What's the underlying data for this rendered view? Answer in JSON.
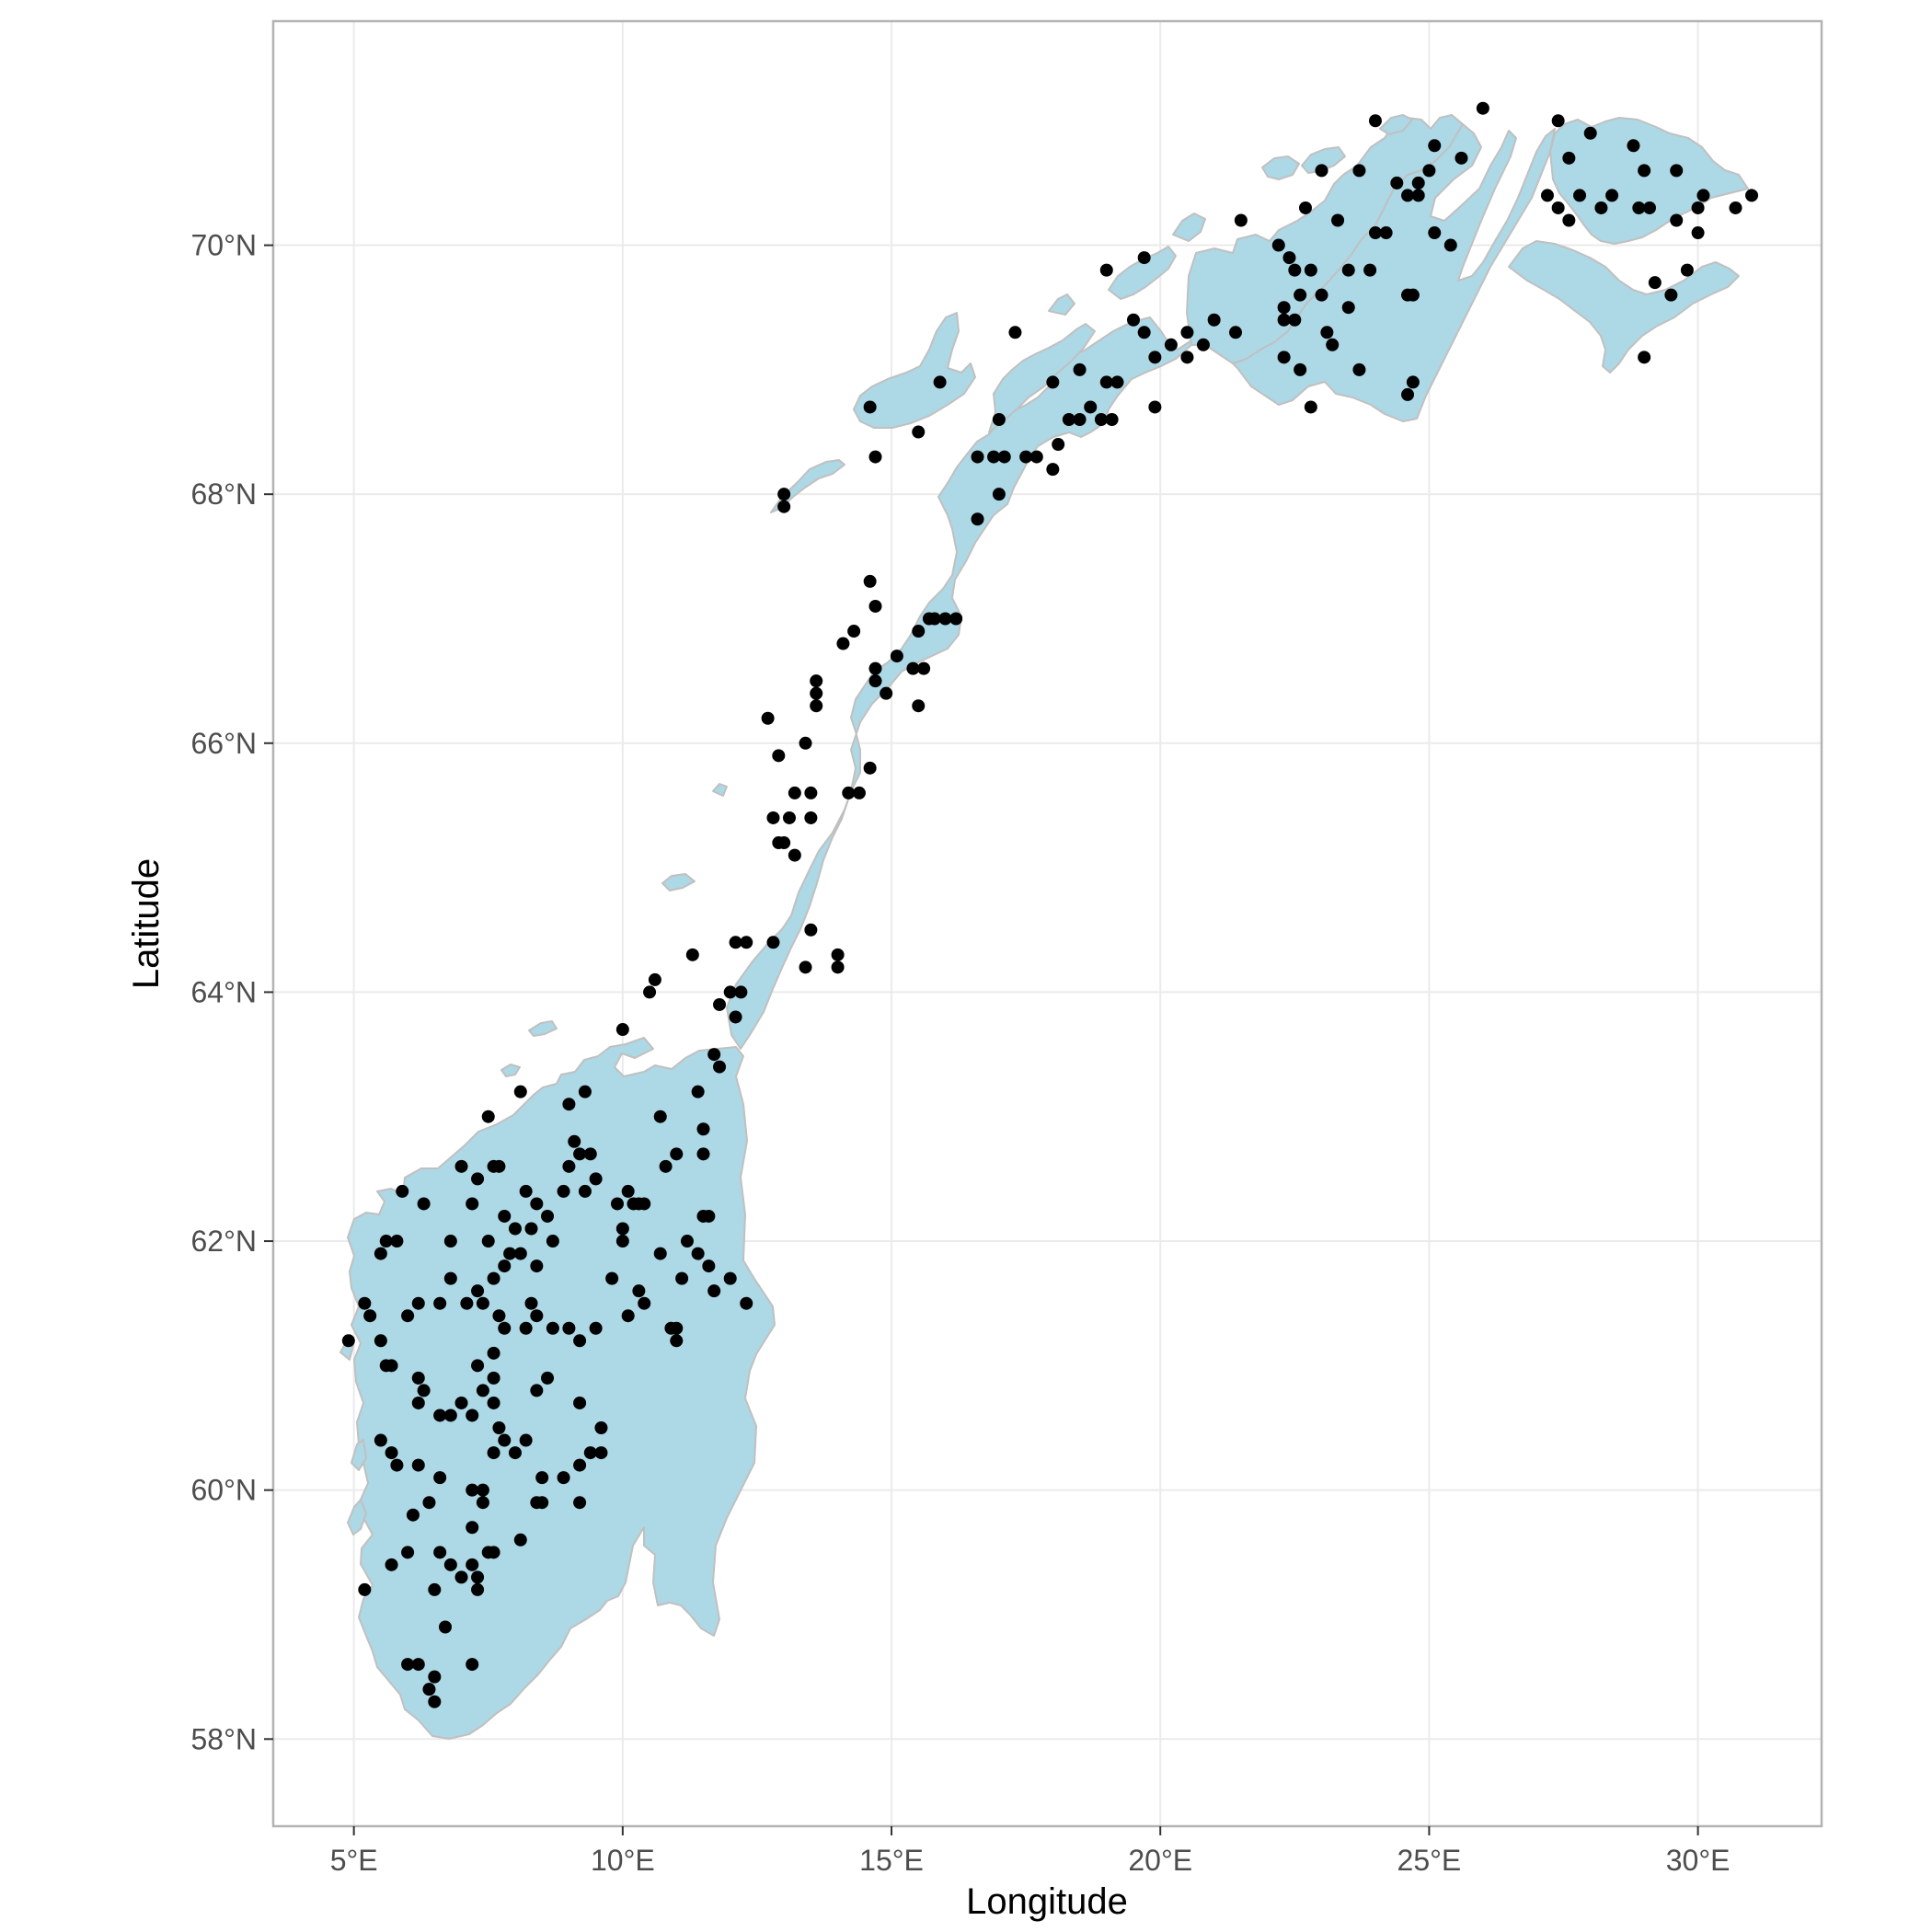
{
  "chart_data": {
    "type": "scatter",
    "map": "Norway",
    "xlabel": "Longitude",
    "ylabel": "Latitude",
    "xlim": [
      3.5,
      32.3
    ],
    "ylim": [
      57.3,
      71.8
    ],
    "x_ticks": [
      5,
      10,
      15,
      20,
      25,
      30
    ],
    "y_ticks": [
      58,
      60,
      62,
      64,
      66,
      68,
      70
    ],
    "x_tick_labels": [
      "5°E",
      "10°E",
      "15°E",
      "20°E",
      "25°E",
      "30°E"
    ],
    "y_tick_labels": [
      "58°N",
      "60°N",
      "62°N",
      "64°N",
      "66°N",
      "68°N",
      "70°N"
    ],
    "grid": true,
    "colors": {
      "land_fill": "#add8e6",
      "land_border": "#c0c0c0",
      "points": "#000000",
      "panel_border": "#b3b3b3",
      "grid": "#ebebeb"
    },
    "points": [
      [
        6.0,
        58.6
      ],
      [
        6.2,
        58.6
      ],
      [
        6.4,
        58.4
      ],
      [
        6.5,
        58.5
      ],
      [
        6.5,
        58.3
      ],
      [
        6.7,
        58.9
      ],
      [
        7.2,
        58.6
      ],
      [
        5.2,
        59.2
      ],
      [
        5.7,
        59.4
      ],
      [
        6.0,
        59.5
      ],
      [
        6.1,
        59.8
      ],
      [
        6.4,
        59.9
      ],
      [
        6.5,
        59.2
      ],
      [
        6.6,
        59.5
      ],
      [
        6.8,
        59.4
      ],
      [
        7.0,
        59.3
      ],
      [
        7.2,
        59.4
      ],
      [
        7.2,
        59.7
      ],
      [
        7.3,
        59.2
      ],
      [
        7.3,
        59.3
      ],
      [
        7.5,
        59.5
      ],
      [
        7.6,
        59.5
      ],
      [
        7.2,
        60.0
      ],
      [
        7.4,
        59.9
      ],
      [
        7.4,
        60.0
      ],
      [
        5.5,
        60.4
      ],
      [
        5.7,
        60.3
      ],
      [
        5.8,
        60.2
      ],
      [
        6.2,
        60.2
      ],
      [
        6.6,
        60.1
      ],
      [
        7.6,
        60.3
      ],
      [
        7.7,
        60.5
      ],
      [
        7.8,
        60.4
      ],
      [
        8.0,
        60.3
      ],
      [
        8.2,
        60.4
      ],
      [
        8.1,
        59.6
      ],
      [
        8.4,
        59.9
      ],
      [
        8.5,
        60.1
      ],
      [
        8.5,
        59.9
      ],
      [
        8.9,
        60.1
      ],
      [
        9.2,
        59.9
      ],
      [
        9.2,
        60.2
      ],
      [
        9.4,
        60.3
      ],
      [
        9.6,
        60.3
      ],
      [
        9.6,
        60.5
      ],
      [
        5.6,
        61.0
      ],
      [
        5.7,
        61.0
      ],
      [
        6.2,
        60.9
      ],
      [
        6.3,
        60.8
      ],
      [
        6.2,
        60.7
      ],
      [
        6.6,
        60.6
      ],
      [
        6.8,
        60.6
      ],
      [
        7.0,
        60.7
      ],
      [
        7.2,
        60.6
      ],
      [
        7.4,
        60.8
      ],
      [
        7.6,
        60.7
      ],
      [
        7.6,
        60.9
      ],
      [
        7.6,
        61.1
      ],
      [
        7.3,
        61.0
      ],
      [
        8.4,
        60.8
      ],
      [
        8.6,
        60.9
      ],
      [
        9.2,
        60.7
      ],
      [
        4.9,
        61.2
      ],
      [
        5.2,
        61.5
      ],
      [
        5.3,
        61.4
      ],
      [
        5.5,
        61.2
      ],
      [
        5.5,
        61.9
      ],
      [
        5.6,
        62.0
      ],
      [
        5.8,
        62.0
      ],
      [
        5.9,
        62.4
      ],
      [
        6.0,
        61.4
      ],
      [
        6.2,
        61.5
      ],
      [
        6.3,
        62.3
      ],
      [
        6.6,
        61.5
      ],
      [
        6.8,
        61.7
      ],
      [
        7.1,
        61.5
      ],
      [
        7.3,
        61.6
      ],
      [
        7.4,
        61.5
      ],
      [
        7.6,
        61.7
      ],
      [
        7.7,
        61.4
      ],
      [
        7.8,
        61.3
      ],
      [
        7.8,
        61.8
      ],
      [
        7.9,
        61.9
      ],
      [
        8.1,
        61.9
      ],
      [
        8.2,
        61.3
      ],
      [
        8.3,
        61.5
      ],
      [
        8.4,
        61.4
      ],
      [
        8.4,
        61.8
      ],
      [
        8.7,
        61.3
      ],
      [
        9.0,
        61.3
      ],
      [
        9.2,
        61.2
      ],
      [
        9.5,
        61.3
      ],
      [
        6.8,
        62.0
      ],
      [
        7.0,
        62.6
      ],
      [
        7.2,
        62.3
      ],
      [
        7.3,
        62.5
      ],
      [
        7.5,
        62.0
      ],
      [
        7.6,
        62.6
      ],
      [
        7.7,
        62.6
      ],
      [
        7.8,
        62.2
      ],
      [
        8.0,
        62.1
      ],
      [
        8.2,
        62.4
      ],
      [
        8.3,
        62.1
      ],
      [
        8.4,
        62.3
      ],
      [
        8.6,
        62.2
      ],
      [
        8.7,
        62.0
      ],
      [
        8.9,
        62.4
      ],
      [
        9.0,
        62.6
      ],
      [
        9.1,
        62.8
      ],
      [
        9.2,
        62.7
      ],
      [
        9.3,
        62.4
      ],
      [
        9.4,
        62.7
      ],
      [
        9.5,
        62.5
      ],
      [
        9.9,
        62.3
      ],
      [
        10.0,
        62.1
      ],
      [
        10.0,
        62.0
      ],
      [
        10.1,
        62.4
      ],
      [
        10.2,
        62.3
      ],
      [
        10.3,
        62.3
      ],
      [
        10.4,
        62.3
      ],
      [
        9.8,
        61.7
      ],
      [
        10.1,
        61.4
      ],
      [
        10.3,
        61.6
      ],
      [
        10.4,
        61.5
      ],
      [
        10.7,
        61.9
      ],
      [
        10.9,
        61.3
      ],
      [
        11.0,
        61.3
      ],
      [
        11.0,
        61.2
      ],
      [
        11.1,
        61.7
      ],
      [
        11.2,
        62.0
      ],
      [
        11.4,
        61.9
      ],
      [
        11.6,
        61.8
      ],
      [
        11.7,
        61.6
      ],
      [
        12.0,
        61.7
      ],
      [
        12.3,
        61.5
      ],
      [
        11.5,
        62.2
      ],
      [
        11.6,
        62.2
      ],
      [
        7.5,
        63.0
      ],
      [
        8.1,
        63.2
      ],
      [
        9.0,
        63.1
      ],
      [
        9.3,
        63.2
      ],
      [
        10.7,
        63.0
      ],
      [
        10.8,
        62.6
      ],
      [
        11.0,
        62.7
      ],
      [
        11.5,
        62.7
      ],
      [
        11.5,
        62.9
      ],
      [
        11.4,
        63.2
      ],
      [
        11.7,
        63.5
      ],
      [
        11.8,
        63.4
      ],
      [
        10.0,
        63.7
      ],
      [
        10.5,
        64.0
      ],
      [
        10.6,
        64.1
      ],
      [
        11.3,
        64.3
      ],
      [
        12.0,
        64.0
      ],
      [
        12.1,
        64.4
      ],
      [
        12.2,
        64.0
      ],
      [
        12.3,
        64.4
      ],
      [
        12.8,
        64.4
      ],
      [
        11.8,
        63.9
      ],
      [
        12.1,
        63.8
      ],
      [
        13.4,
        64.2
      ],
      [
        13.5,
        64.5
      ],
      [
        14.0,
        64.2
      ],
      [
        14.0,
        64.3
      ],
      [
        12.8,
        65.4
      ],
      [
        12.9,
        65.2
      ],
      [
        13.0,
        65.2
      ],
      [
        13.1,
        65.4
      ],
      [
        13.2,
        65.1
      ],
      [
        13.2,
        65.6
      ],
      [
        13.5,
        65.4
      ],
      [
        13.5,
        65.6
      ],
      [
        14.2,
        65.6
      ],
      [
        14.4,
        65.6
      ],
      [
        14.6,
        65.8
      ],
      [
        12.9,
        65.9
      ],
      [
        13.4,
        66.0
      ],
      [
        12.7,
        66.2
      ],
      [
        13.6,
        66.3
      ],
      [
        13.6,
        66.4
      ],
      [
        13.6,
        66.5
      ],
      [
        14.1,
        66.8
      ],
      [
        14.3,
        66.9
      ],
      [
        14.7,
        66.6
      ],
      [
        14.7,
        66.5
      ],
      [
        15.1,
        66.7
      ],
      [
        15.4,
        66.6
      ],
      [
        15.6,
        66.6
      ],
      [
        14.9,
        66.4
      ],
      [
        15.5,
        66.3
      ],
      [
        14.7,
        67.1
      ],
      [
        15.5,
        66.9
      ],
      [
        15.7,
        67.0
      ],
      [
        15.8,
        67.0
      ],
      [
        16.0,
        67.0
      ],
      [
        16.2,
        67.0
      ],
      [
        14.6,
        67.3
      ],
      [
        16.6,
        67.8
      ],
      [
        13.0,
        67.9
      ],
      [
        13.0,
        68.0
      ],
      [
        14.6,
        68.7
      ],
      [
        14.7,
        68.3
      ],
      [
        15.5,
        68.5
      ],
      [
        15.9,
        68.9
      ],
      [
        16.6,
        68.3
      ],
      [
        16.9,
        68.3
      ],
      [
        17.1,
        68.3
      ],
      [
        17.0,
        68.0
      ],
      [
        17.5,
        68.3
      ],
      [
        17.7,
        68.3
      ],
      [
        17.0,
        68.6
      ],
      [
        18.0,
        68.2
      ],
      [
        18.1,
        68.4
      ],
      [
        18.0,
        68.9
      ],
      [
        18.3,
        68.6
      ],
      [
        18.5,
        68.6
      ],
      [
        18.5,
        69.0
      ],
      [
        17.3,
        69.3
      ],
      [
        18.7,
        68.7
      ],
      [
        18.9,
        68.6
      ],
      [
        19.1,
        68.6
      ],
      [
        19.0,
        68.9
      ],
      [
        19.2,
        68.9
      ],
      [
        19.9,
        68.7
      ],
      [
        19.0,
        69.8
      ],
      [
        19.5,
        69.4
      ],
      [
        19.7,
        69.3
      ],
      [
        19.7,
        69.9
      ],
      [
        19.9,
        69.1
      ],
      [
        20.2,
        69.2
      ],
      [
        20.5,
        69.1
      ],
      [
        20.5,
        69.3
      ],
      [
        20.8,
        69.2
      ],
      [
        21.0,
        69.4
      ],
      [
        21.4,
        69.3
      ],
      [
        21.5,
        70.2
      ],
      [
        22.3,
        69.4
      ],
      [
        22.3,
        69.5
      ],
      [
        22.5,
        69.4
      ],
      [
        22.5,
        69.8
      ],
      [
        22.6,
        69.6
      ],
      [
        22.3,
        69.1
      ],
      [
        22.6,
        69.0
      ],
      [
        22.8,
        68.7
      ],
      [
        22.2,
        70.0
      ],
      [
        22.4,
        69.9
      ],
      [
        22.8,
        69.8
      ],
      [
        22.7,
        70.3
      ],
      [
        23.0,
        70.6
      ],
      [
        23.0,
        69.6
      ],
      [
        23.1,
        69.3
      ],
      [
        23.2,
        69.2
      ],
      [
        23.5,
        69.5
      ],
      [
        23.5,
        69.8
      ],
      [
        23.7,
        69.0
      ],
      [
        23.9,
        69.8
      ],
      [
        23.3,
        70.2
      ],
      [
        23.7,
        70.6
      ],
      [
        24.0,
        70.1
      ],
      [
        24.2,
        70.1
      ],
      [
        24.4,
        70.5
      ],
      [
        24.6,
        70.4
      ],
      [
        24.8,
        70.5
      ],
      [
        24.8,
        70.4
      ],
      [
        25.0,
        70.6
      ],
      [
        25.1,
        70.8
      ],
      [
        24.6,
        69.6
      ],
      [
        24.7,
        69.6
      ],
      [
        24.6,
        68.8
      ],
      [
        24.7,
        68.9
      ],
      [
        25.1,
        70.1
      ],
      [
        25.4,
        70.0
      ],
      [
        25.6,
        70.7
      ],
      [
        24.0,
        71.0
      ],
      [
        26.0,
        71.1
      ],
      [
        27.2,
        70.4
      ],
      [
        27.4,
        70.3
      ],
      [
        27.4,
        71.0
      ],
      [
        27.6,
        70.7
      ],
      [
        27.6,
        70.2
      ],
      [
        27.8,
        70.4
      ],
      [
        28.0,
        70.9
      ],
      [
        28.2,
        70.3
      ],
      [
        28.4,
        70.4
      ],
      [
        28.8,
        70.8
      ],
      [
        28.9,
        70.3
      ],
      [
        29.0,
        70.6
      ],
      [
        29.1,
        70.3
      ],
      [
        29.0,
        69.1
      ],
      [
        29.2,
        69.7
      ],
      [
        29.5,
        69.6
      ],
      [
        29.6,
        70.2
      ],
      [
        29.8,
        69.8
      ],
      [
        29.6,
        70.6
      ],
      [
        30.0,
        70.3
      ],
      [
        30.0,
        70.1
      ],
      [
        30.1,
        70.4
      ],
      [
        30.7,
        70.3
      ],
      [
        31.0,
        70.4
      ]
    ]
  }
}
